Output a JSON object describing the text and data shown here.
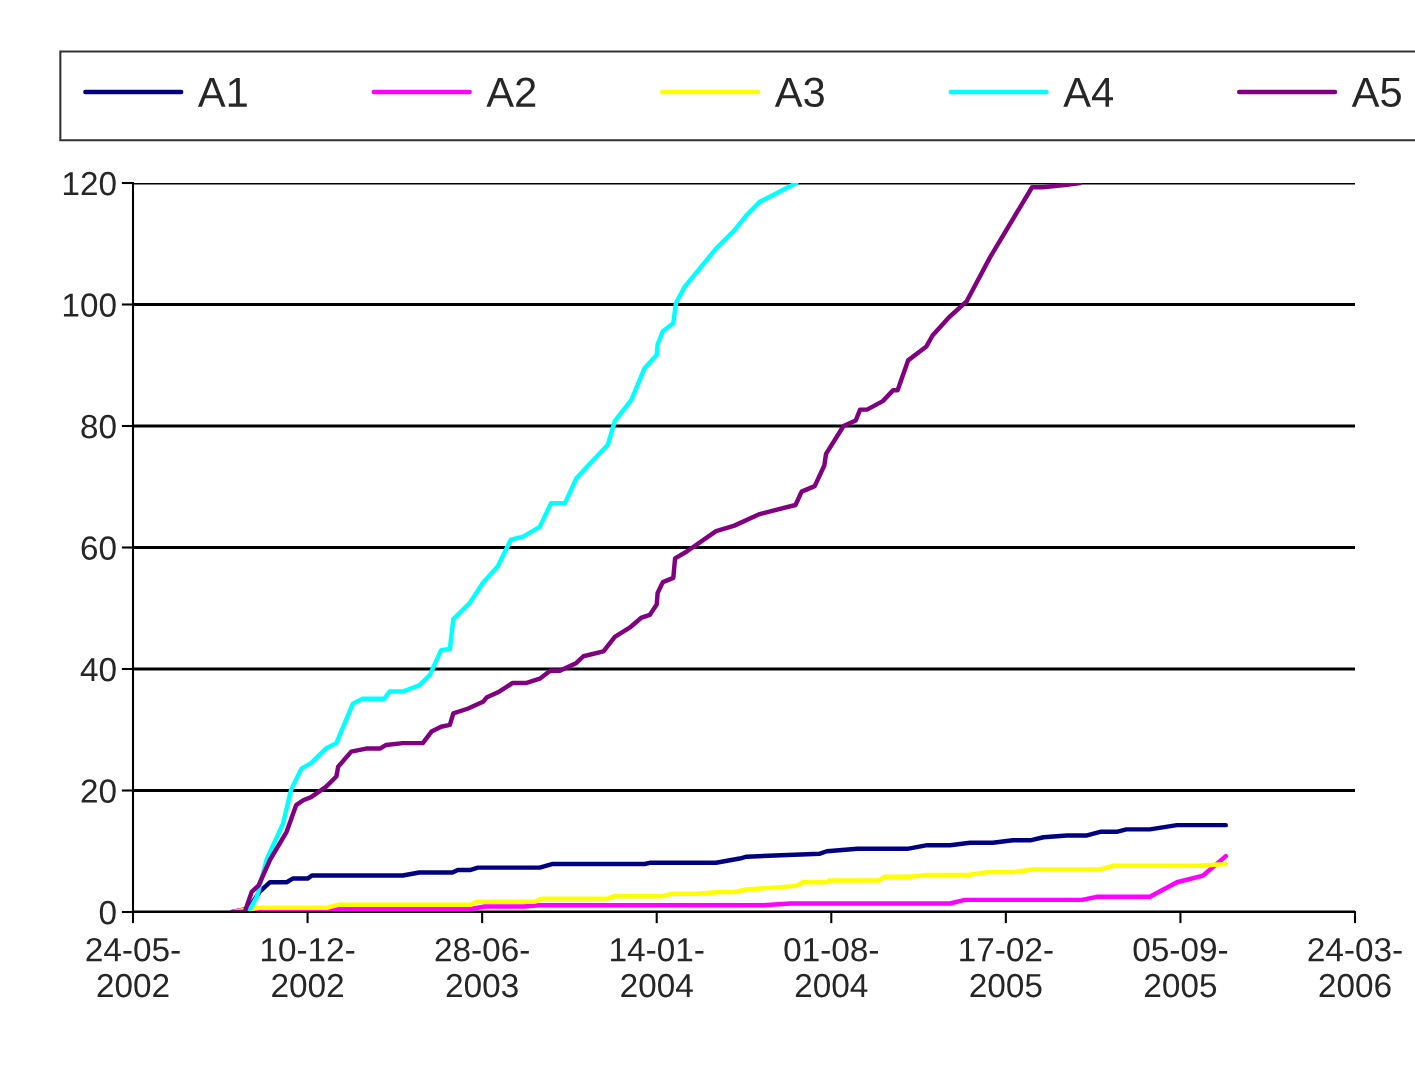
{
  "chart_data": {
    "type": "line",
    "xlim": [
      "2002-05-24",
      "2006-03-24"
    ],
    "xticks": [
      {
        "value": "2002-05-24",
        "label": "24-05-\n2002"
      },
      {
        "value": "2002-12-10",
        "label": "10-12-\n2002"
      },
      {
        "value": "2003-06-28",
        "label": "28-06-\n2003"
      },
      {
        "value": "2004-01-14",
        "label": "14-01-\n2004"
      },
      {
        "value": "2004-08-01",
        "label": "01-08-\n2004"
      },
      {
        "value": "2005-02-17",
        "label": "17-02-\n2005"
      },
      {
        "value": "2005-09-05",
        "label": "05-09-\n2005"
      },
      {
        "value": "2006-03-24",
        "label": "24-03-\n2006"
      }
    ],
    "ylim": [
      0,
      120
    ],
    "yticks": [
      0,
      20,
      40,
      60,
      80,
      100,
      120
    ],
    "grid": "y",
    "legend": "top",
    "marker": "none",
    "line_style": "solid",
    "series": [
      {
        "name": "A1",
        "color": "#000080",
        "x": [
          "2002-09-15",
          "2002-10-03",
          "2002-10-16",
          "2002-10-28",
          "2002-11-16",
          "2002-11-23",
          "2002-12-10",
          "2002-12-15",
          "2003-03-29",
          "2003-04-17",
          "2003-05-25",
          "2003-05-31",
          "2003-06-14",
          "2003-06-23",
          "2003-09-02",
          "2003-09-16",
          "2003-12-31",
          "2004-01-06",
          "2004-03-22",
          "2004-04-18",
          "2004-04-26",
          "2004-07-19",
          "2004-07-27",
          "2004-08-31",
          "2004-10-27",
          "2004-11-19",
          "2004-12-15",
          "2005-01-07",
          "2005-02-02",
          "2005-02-25",
          "2005-03-17",
          "2005-04-01",
          "2005-04-28",
          "2005-05-21",
          "2005-06-05",
          "2005-06-24",
          "2005-07-05",
          "2005-08-01",
          "2005-09-01",
          "2005-10-27"
        ],
        "values": [
          0,
          0.5,
          3.3,
          4.9,
          4.9,
          5.5,
          5.5,
          6.0,
          6.0,
          6.5,
          6.5,
          6.9,
          6.9,
          7.3,
          7.3,
          7.9,
          7.9,
          8.1,
          8.1,
          8.8,
          9.1,
          9.6,
          10.0,
          10.4,
          10.4,
          11.0,
          11.0,
          11.4,
          11.4,
          11.8,
          11.8,
          12.3,
          12.6,
          12.6,
          13.2,
          13.2,
          13.6,
          13.6,
          14.3,
          14.3
        ]
      },
      {
        "name": "A2",
        "color": "#ff00ff",
        "x": [
          "2002-09-15",
          "2002-10-01",
          "2003-06-15",
          "2003-07-01",
          "2003-08-15",
          "2003-09-01",
          "2004-05-15",
          "2004-06-15",
          "2004-12-15",
          "2005-01-01",
          "2005-05-15",
          "2005-06-01",
          "2005-08-01",
          "2005-09-01",
          "2005-10-01",
          "2005-10-27"
        ],
        "values": [
          0,
          0.5,
          0.5,
          0.9,
          0.9,
          1.1,
          1.1,
          1.4,
          1.4,
          2.0,
          2.0,
          2.5,
          2.5,
          4.9,
          6.0,
          9.2
        ]
      },
      {
        "name": "A3",
        "color": "#ffff00",
        "x": [
          "2002-09-15",
          "2002-10-15",
          "2003-01-01",
          "2003-01-15",
          "2003-06-15",
          "2003-06-22",
          "2003-08-27",
          "2003-09-04",
          "2003-11-18",
          "2003-11-27",
          "2004-01-20",
          "2004-02-01",
          "2004-02-29",
          "2004-03-26",
          "2004-04-12",
          "2004-04-26",
          "2004-06-22",
          "2004-06-29",
          "2004-07-27",
          "2004-07-30",
          "2004-09-25",
          "2004-10-01",
          "2004-10-30",
          "2004-11-19",
          "2005-01-04",
          "2005-01-29",
          "2005-02-27",
          "2005-03-19",
          "2005-06-05",
          "2005-06-20",
          "2005-09-27",
          "2005-10-27"
        ],
        "values": [
          0,
          0.7,
          0.7,
          1.2,
          1.2,
          1.7,
          1.7,
          2.2,
          2.2,
          2.6,
          2.6,
          3.0,
          3.0,
          3.3,
          3.3,
          3.7,
          4.3,
          4.9,
          4.9,
          5.2,
          5.2,
          5.8,
          5.8,
          6.1,
          6.1,
          6.6,
          6.6,
          7.0,
          7.0,
          7.6,
          7.6,
          7.9
        ]
      },
      {
        "name": "A4",
        "color": "#00ffff",
        "x": [
          "2002-10-03",
          "2002-10-13",
          "2002-10-24",
          "2002-11-12",
          "2002-11-21",
          "2002-12-03",
          "2002-12-14",
          "2002-12-31",
          "2003-01-12",
          "2003-01-31",
          "2003-02-11",
          "2003-03-08",
          "2003-03-14",
          "2003-03-29",
          "2003-04-17",
          "2003-04-29",
          "2003-05-12",
          "2003-05-22",
          "2003-05-26",
          "2003-06-14",
          "2003-06-29",
          "2003-07-16",
          "2003-07-31",
          "2003-08-14",
          "2003-09-02",
          "2003-09-15",
          "2003-10-01",
          "2003-10-14",
          "2003-10-27",
          "2003-11-19",
          "2003-11-27",
          "2003-12-16",
          "2003-12-31",
          "2004-01-14",
          "2004-01-15",
          "2004-01-21",
          "2004-02-02",
          "2004-02-05",
          "2004-02-15",
          "2004-03-22",
          "2004-04-12",
          "2004-04-26",
          "2004-05-11",
          "2004-06-22"
        ],
        "values": [
          0,
          2.5,
          8.6,
          14.6,
          20.1,
          23.6,
          24.5,
          26.9,
          27.8,
          34.3,
          35.1,
          35.1,
          36.3,
          36.3,
          37.3,
          39.0,
          43.1,
          43.3,
          48.2,
          50.9,
          54.2,
          56.9,
          61.3,
          61.8,
          63.4,
          67.3,
          67.3,
          71.4,
          73.4,
          76.9,
          80.8,
          84.3,
          89.5,
          91.7,
          93.4,
          95.6,
          96.9,
          100.2,
          102.9,
          109.2,
          112.2,
          114.7,
          116.9,
          120
        ]
      },
      {
        "name": "A5",
        "color": "#800080",
        "x": [
          "2002-09-14",
          "2002-09-29",
          "2002-10-07",
          "2002-10-15",
          "2002-10-28",
          "2002-11-16",
          "2002-11-27",
          "2002-12-05",
          "2002-12-14",
          "2002-12-31",
          "2003-01-12",
          "2003-01-14",
          "2003-01-29",
          "2003-02-15",
          "2003-03-03",
          "2003-03-10",
          "2003-03-29",
          "2003-04-21",
          "2003-05-01",
          "2003-05-12",
          "2003-05-22",
          "2003-05-26",
          "2003-06-12",
          "2003-06-29",
          "2003-07-03",
          "2003-07-18",
          "2003-08-02",
          "2003-08-18",
          "2003-09-02",
          "2003-09-14",
          "2003-09-25",
          "2003-10-14",
          "2003-10-22",
          "2003-11-14",
          "2003-11-27",
          "2003-12-14",
          "2003-12-27",
          "2004-01-06",
          "2004-01-14",
          "2004-01-15",
          "2004-01-21",
          "2004-02-02",
          "2004-02-04",
          "2004-02-17",
          "2004-03-22",
          "2004-04-12",
          "2004-05-11",
          "2004-06-21",
          "2004-06-28",
          "2004-07-13",
          "2004-07-24",
          "2004-07-26",
          "2004-08-15",
          "2004-08-29",
          "2004-09-03",
          "2004-09-11",
          "2004-09-29",
          "2004-10-11",
          "2004-10-16",
          "2004-10-28",
          "2004-11-18",
          "2004-11-25",
          "2004-12-14",
          "2005-01-03",
          "2005-01-30",
          "2005-03-19",
          "2005-03-31",
          "2005-04-28",
          "2005-05-13"
        ],
        "values": [
          0,
          0,
          3.3,
          4.4,
          8.6,
          13.2,
          17.6,
          18.4,
          18.9,
          20.6,
          22.3,
          23.9,
          26.4,
          26.9,
          26.9,
          27.5,
          27.8,
          27.8,
          29.7,
          30.5,
          30.8,
          32.7,
          33.5,
          34.6,
          35.3,
          36.3,
          37.7,
          37.7,
          38.4,
          39.7,
          39.7,
          41.0,
          42.1,
          42.9,
          45.3,
          46.8,
          48.4,
          48.9,
          50.6,
          52.5,
          54.3,
          55.0,
          58.2,
          59.3,
          62.7,
          63.6,
          65.5,
          67.0,
          69.2,
          70.1,
          73.5,
          75.4,
          80.0,
          80.9,
          82.7,
          82.7,
          84.1,
          85.9,
          85.9,
          90.8,
          93.1,
          94.9,
          97.9,
          100.5,
          107.8,
          119.3,
          119.3,
          119.7,
          120
        ]
      }
    ]
  }
}
